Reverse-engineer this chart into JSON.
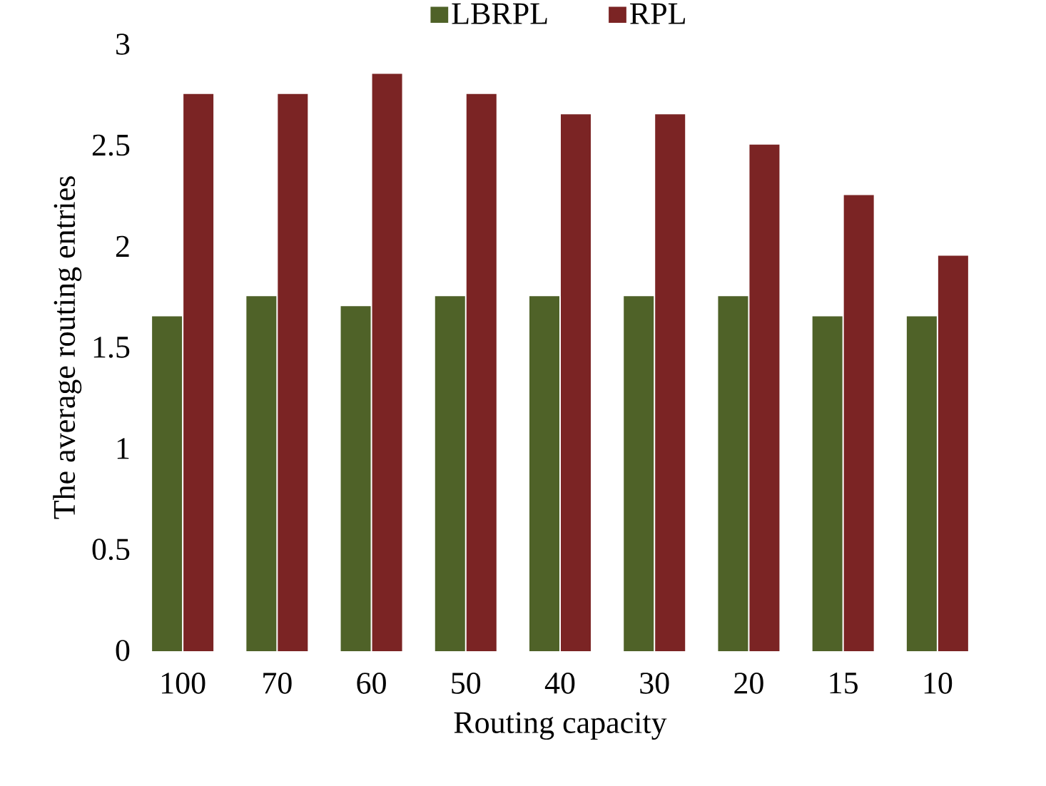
{
  "chart_data": {
    "type": "bar",
    "xlabel": "Routing capacity",
    "ylabel": "The average routing entries",
    "categories": [
      "100",
      "70",
      "60",
      "50",
      "40",
      "30",
      "20",
      "15",
      "10"
    ],
    "series": [
      {
        "name": "LBRPL",
        "color": "#4f6228",
        "values": [
          1.65,
          1.75,
          1.7,
          1.75,
          1.75,
          1.75,
          1.75,
          1.65,
          1.65
        ]
      },
      {
        "name": "RPL",
        "color": "#7b2424",
        "values": [
          2.75,
          2.75,
          2.85,
          2.75,
          2.65,
          2.65,
          2.5,
          2.25,
          1.95
        ]
      }
    ],
    "ylim": [
      0,
      3
    ],
    "yticks": [
      0,
      0.5,
      1,
      1.5,
      2,
      2.5,
      3
    ],
    "grid": false,
    "legend": "top"
  }
}
